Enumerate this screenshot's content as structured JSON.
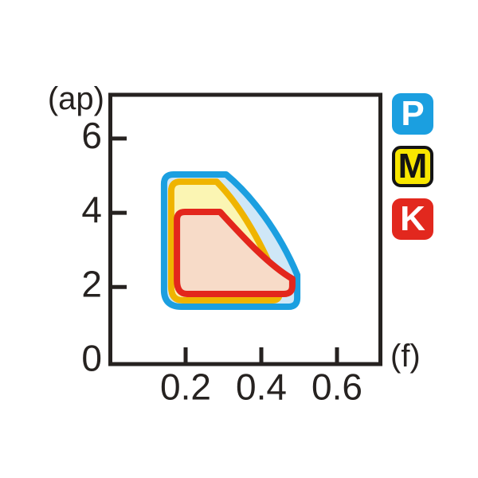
{
  "figure": {
    "ylabel": "(ap)",
    "xlabel": "(f)"
  },
  "legend": {
    "items": [
      {
        "code": "P",
        "bg": "#1B9FE0",
        "fg": "#FFFFFF",
        "border": ""
      },
      {
        "code": "M",
        "bg": "#F8E600",
        "fg": "#141414",
        "border": "#141414"
      },
      {
        "code": "K",
        "bg": "#E2281E",
        "fg": "#FFFFFF",
        "border": ""
      }
    ]
  },
  "chart_data": {
    "type": "area",
    "title": "",
    "xlabel": "(f)",
    "ylabel": "(ap)",
    "xlim": [
      0,
      0.72
    ],
    "ylim": [
      0,
      7.2
    ],
    "x_ticks": [
      0.2,
      0.4,
      0.6
    ],
    "y_ticks": [
      6,
      4,
      2,
      0
    ],
    "grid": false,
    "legend_position": "right",
    "series": [
      {
        "name": "P",
        "stroke": "#1B9FE0",
        "fill": "#CFE7F7",
        "f_range": [
          0.14,
          0.5
        ],
        "ap_range": [
          1.5,
          5.0
        ],
        "outline": [
          [
            "M",
            0.143,
            1.921
          ],
          [
            "L",
            0.143,
            4.775
          ],
          [
            "Q",
            0.143,
            5.032,
            0.168,
            5.032
          ],
          [
            "L",
            0.307,
            5.032
          ],
          [
            "C",
            0.373,
            4.474,
            0.446,
            3.509,
            0.495,
            2.328
          ],
          [
            "L",
            0.495,
            1.706
          ],
          [
            "Q",
            0.495,
            1.47,
            0.472,
            1.47
          ],
          [
            "L",
            0.189,
            1.47
          ],
          [
            "Q",
            0.143,
            1.47,
            0.143,
            1.921
          ]
        ]
      },
      {
        "name": "M",
        "stroke": "#EFB400",
        "fill": "#FBF5B3",
        "f_range": [
          0.16,
          0.46
        ],
        "ap_range": [
          1.6,
          4.8
        ],
        "outline": [
          [
            "M",
            0.162,
            2.006
          ],
          [
            "L",
            0.162,
            4.581
          ],
          [
            "Q",
            0.162,
            4.839,
            0.187,
            4.839
          ],
          [
            "L",
            0.282,
            4.839
          ],
          [
            "C",
            0.345,
            4.195,
            0.408,
            3.079,
            0.446,
            2.006
          ],
          [
            "Q",
            0.455,
            1.642,
            0.429,
            1.642
          ],
          [
            "L",
            0.192,
            1.642
          ],
          [
            "Q",
            0.162,
            1.642,
            0.162,
            2.006
          ]
        ]
      },
      {
        "name": "K",
        "stroke": "#E3261C",
        "fill": "#F7DBC8",
        "f_range": [
          0.18,
          0.48
        ],
        "ap_range": [
          1.8,
          4.0
        ],
        "outline": [
          [
            "M",
            0.177,
            2.178
          ],
          [
            "L",
            0.177,
            3.809
          ],
          [
            "Q",
            0.177,
            4.024,
            0.198,
            4.024
          ],
          [
            "L",
            0.291,
            4.024
          ],
          [
            "C",
            0.349,
            3.38,
            0.417,
            2.607,
            0.482,
            2.221
          ],
          [
            "L",
            0.482,
            2.028
          ],
          [
            "Q",
            0.482,
            1.813,
            0.459,
            1.813
          ],
          [
            "L",
            0.204,
            1.813
          ],
          [
            "Q",
            0.177,
            1.813,
            0.177,
            2.178
          ]
        ]
      }
    ]
  }
}
